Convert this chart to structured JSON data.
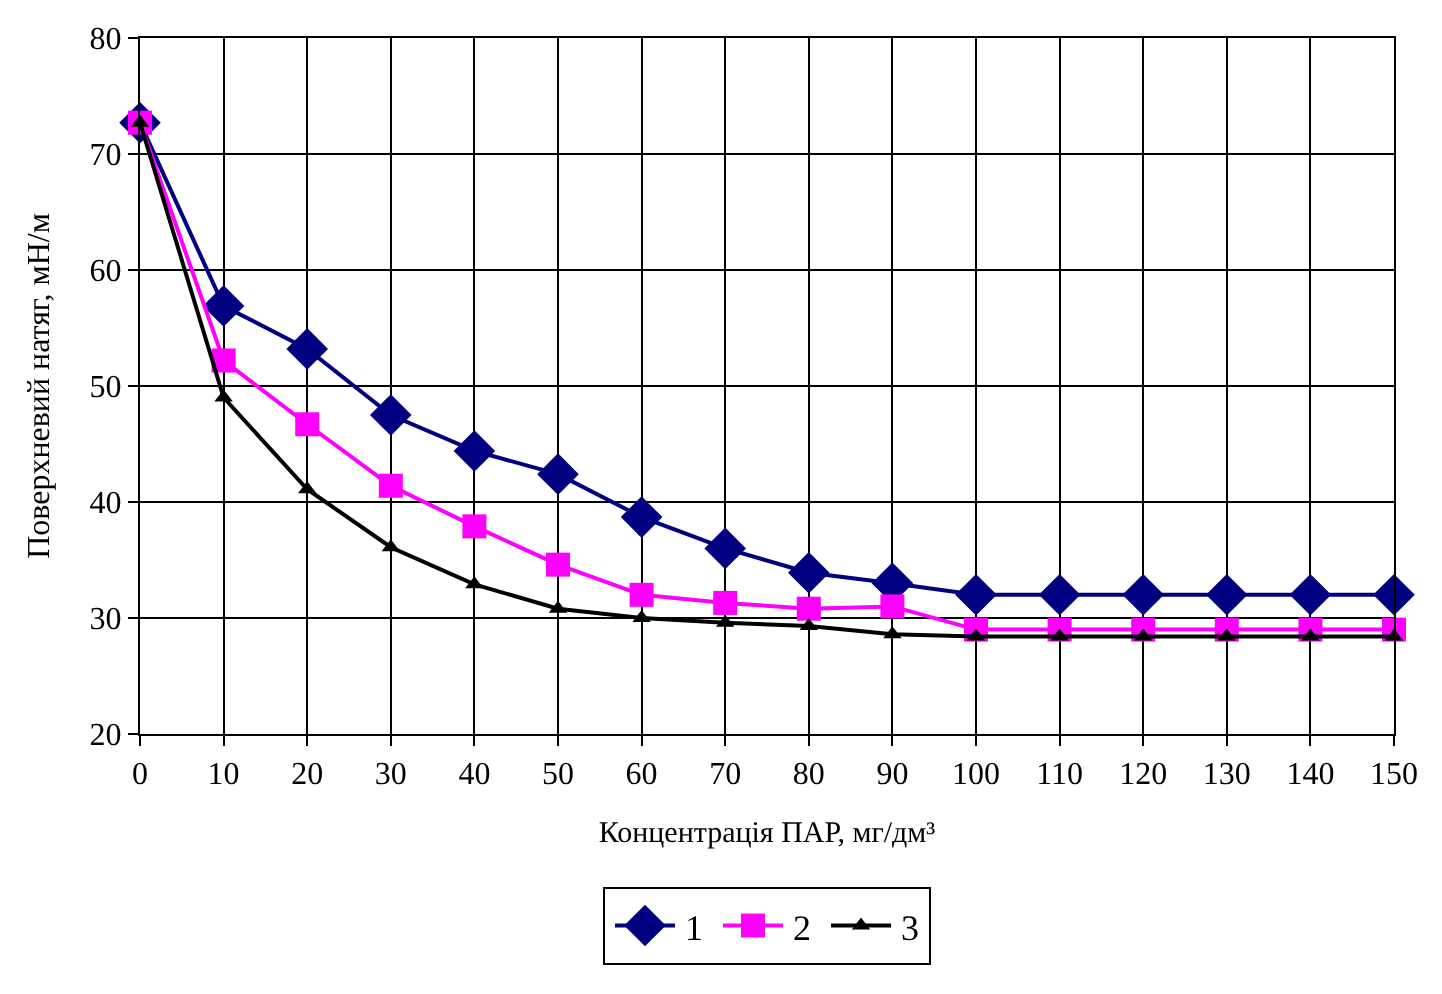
{
  "chart_data": {
    "type": "line",
    "xlabel": "Концентрація ПАР, мг/дм³",
    "ylabel": "Поверхневий натяг, мН/м",
    "x": [
      0,
      10,
      20,
      30,
      40,
      50,
      60,
      70,
      80,
      90,
      100,
      110,
      120,
      130,
      140,
      150
    ],
    "xlim": [
      0,
      150
    ],
    "xticks": [
      0,
      10,
      20,
      30,
      40,
      50,
      60,
      70,
      80,
      90,
      100,
      110,
      120,
      130,
      140,
      150
    ],
    "ylim": [
      20,
      80
    ],
    "yticks": [
      20,
      30,
      40,
      50,
      60,
      70,
      80
    ],
    "grid": true,
    "legend": "bottom",
    "line_style": "solid",
    "series": [
      {
        "name": "1",
        "color": "#000080",
        "marker": "diamond",
        "values": [
          72.7,
          56.9,
          53.2,
          47.5,
          44.4,
          42.4,
          38.7,
          36.0,
          33.9,
          33.0,
          32.0,
          32.0,
          32.0,
          32.0,
          32.0,
          32.0
        ]
      },
      {
        "name": "2",
        "color": "#ff00ff",
        "marker": "square",
        "values": [
          72.7,
          52.2,
          46.7,
          41.4,
          37.9,
          34.6,
          32.0,
          31.3,
          30.8,
          31.0,
          29.0,
          29.0,
          29.0,
          29.0,
          29.0,
          29.0
        ]
      },
      {
        "name": "3",
        "color": "#000000",
        "marker": "triangle",
        "values": [
          72.7,
          49.0,
          41.1,
          36.1,
          32.9,
          30.8,
          30.0,
          29.6,
          29.3,
          28.6,
          28.4,
          28.4,
          28.4,
          28.4,
          28.4,
          28.4
        ]
      }
    ]
  }
}
